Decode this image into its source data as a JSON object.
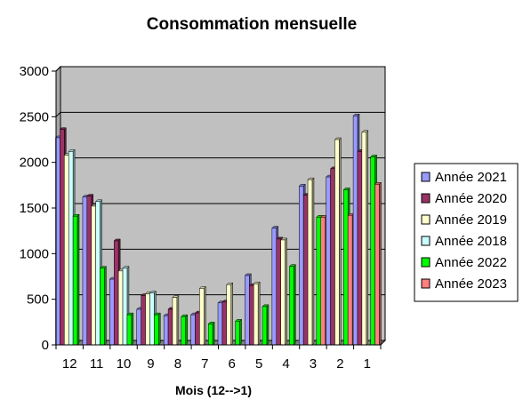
{
  "chart_data": {
    "type": "bar",
    "title": "Consommation mensuelle",
    "xlabel": "Mois (12-->1)",
    "ylabel": "",
    "ylim": [
      0,
      3000
    ],
    "yticks": [
      "0",
      "500",
      "1000",
      "1500",
      "2000",
      "2500",
      "3000"
    ],
    "grid": true,
    "legend_position": "right",
    "categories": [
      "12",
      "11",
      "10",
      "9",
      "8",
      "7",
      "6",
      "5",
      "4",
      "3",
      "2",
      "1"
    ],
    "series": [
      {
        "name": "Année 2021",
        "color": "#9999ff",
        "values": [
          2270,
          1620,
          720,
          390,
          320,
          330,
          460,
          760,
          1280,
          1740,
          1840,
          2510
        ]
      },
      {
        "name": "Année 2020",
        "color": "#993366",
        "values": [
          2360,
          1630,
          1140,
          540,
          390,
          350,
          470,
          650,
          1160,
          1640,
          1930,
          2120
        ]
      },
      {
        "name": "Année 2019",
        "color": "#ffffcc",
        "values": [
          2080,
          1520,
          810,
          560,
          520,
          620,
          660,
          670,
          1150,
          1810,
          2250,
          2330
        ]
      },
      {
        "name": "Année 2018",
        "color": "#ccffff",
        "values": [
          2120,
          1570,
          840,
          570,
          null,
          null,
          null,
          null,
          null,
          null,
          null,
          null
        ]
      },
      {
        "name": "Année 2022",
        "color": "#00ff00",
        "values": [
          1410,
          840,
          330,
          330,
          310,
          230,
          260,
          420,
          860,
          1400,
          1700,
          2060
        ]
      },
      {
        "name": "Année 2023",
        "color": "#ff8080",
        "values": [
          null,
          null,
          null,
          null,
          null,
          null,
          null,
          null,
          null,
          1400,
          1420,
          1760
        ]
      }
    ]
  }
}
